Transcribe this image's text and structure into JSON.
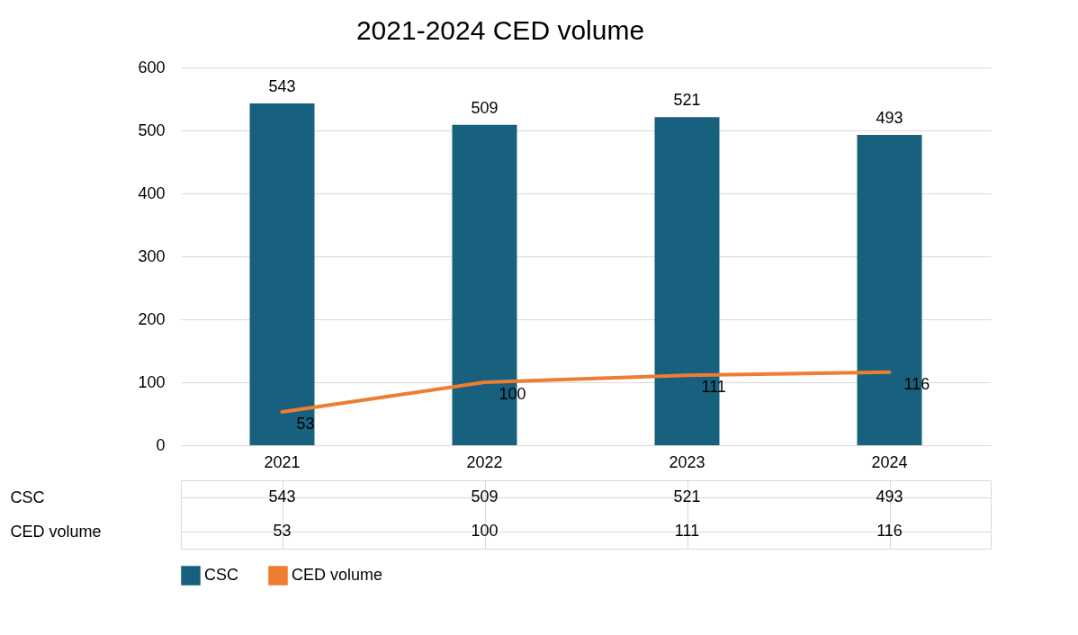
{
  "chart_data": {
    "type": "bar",
    "title": "2021-2024 CED  volume",
    "categories": [
      "2021",
      "2022",
      "2023",
      "2024"
    ],
    "series": [
      {
        "name": "CSC",
        "color": "#17607e",
        "values": [
          543,
          509,
          521,
          493
        ],
        "value_labels": [
          "543",
          "509",
          "521",
          "493"
        ]
      },
      {
        "name": "CED volume",
        "type": "line",
        "color": "#ed7d31",
        "values": [
          53,
          100,
          111,
          116
        ],
        "value_labels": [
          "53",
          "100",
          "111",
          "116"
        ]
      }
    ],
    "ylim": [
      0,
      600
    ],
    "yticks": [
      0,
      100,
      200,
      300,
      400,
      500,
      600
    ],
    "grid": "y",
    "legend": "bottom",
    "data_labels": true
  }
}
